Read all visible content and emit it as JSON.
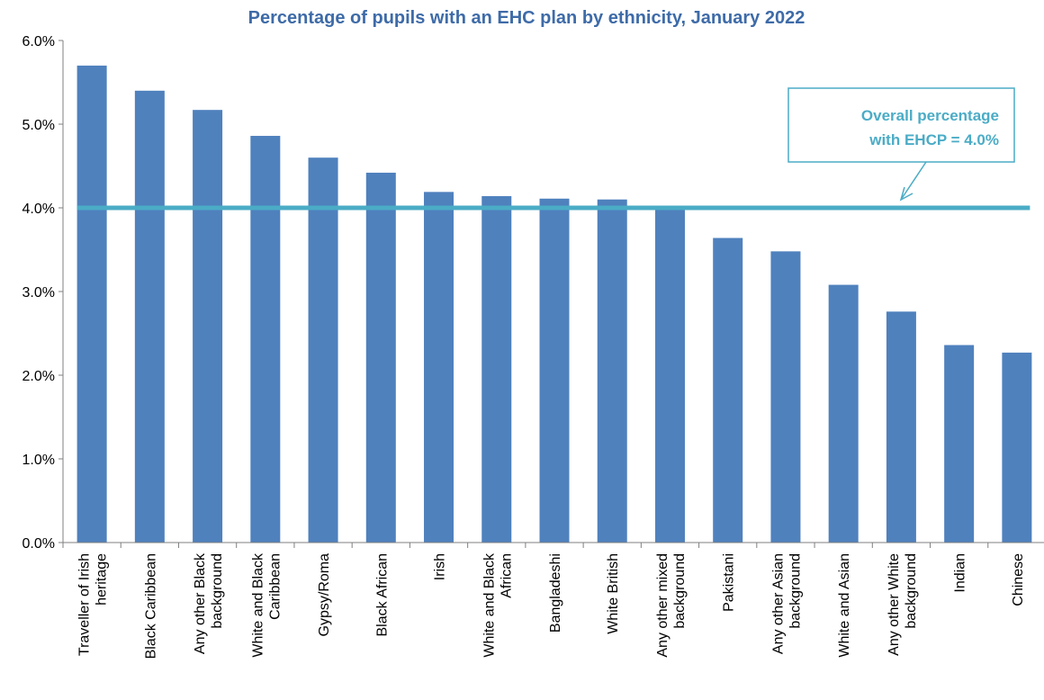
{
  "chart_data": {
    "type": "bar",
    "title": "Percentage of pupils with an EHC plan by ethnicity, January 2022",
    "categories": [
      [
        "Traveller of Irish",
        "heritage"
      ],
      [
        "Black Caribbean"
      ],
      [
        "Any other Black",
        "background"
      ],
      [
        "White and Black",
        "Caribbean"
      ],
      [
        "Gypsy/Roma"
      ],
      [
        "Black African"
      ],
      [
        "Irish"
      ],
      [
        "White and Black",
        "African"
      ],
      [
        "Bangladeshi"
      ],
      [
        "White British"
      ],
      [
        "Any other mixed",
        "background"
      ],
      [
        "Pakistani"
      ],
      [
        "Any other Asian",
        "background"
      ],
      [
        "White and Asian"
      ],
      [
        "Any other White",
        "background"
      ],
      [
        "Indian"
      ],
      [
        "Chinese"
      ]
    ],
    "values": [
      5.7,
      5.4,
      5.17,
      4.86,
      4.6,
      4.42,
      4.19,
      4.14,
      4.11,
      4.1,
      4.0,
      3.64,
      3.48,
      3.08,
      2.76,
      2.36,
      2.27
    ],
    "ylim": [
      0,
      6
    ],
    "yticks": [
      "0.0%",
      "1.0%",
      "2.0%",
      "3.0%",
      "4.0%",
      "5.0%",
      "6.0%"
    ],
    "reference_line": {
      "value": 4.0,
      "color": "#4BACC6"
    },
    "annotation": [
      "Overall percentage",
      "with EHCP = 4.0%"
    ],
    "bar_color": "#4F81BD",
    "title_color": "#3E6BA8",
    "annotation_color": "#4BACC6",
    "grid": false,
    "legend": "none"
  }
}
